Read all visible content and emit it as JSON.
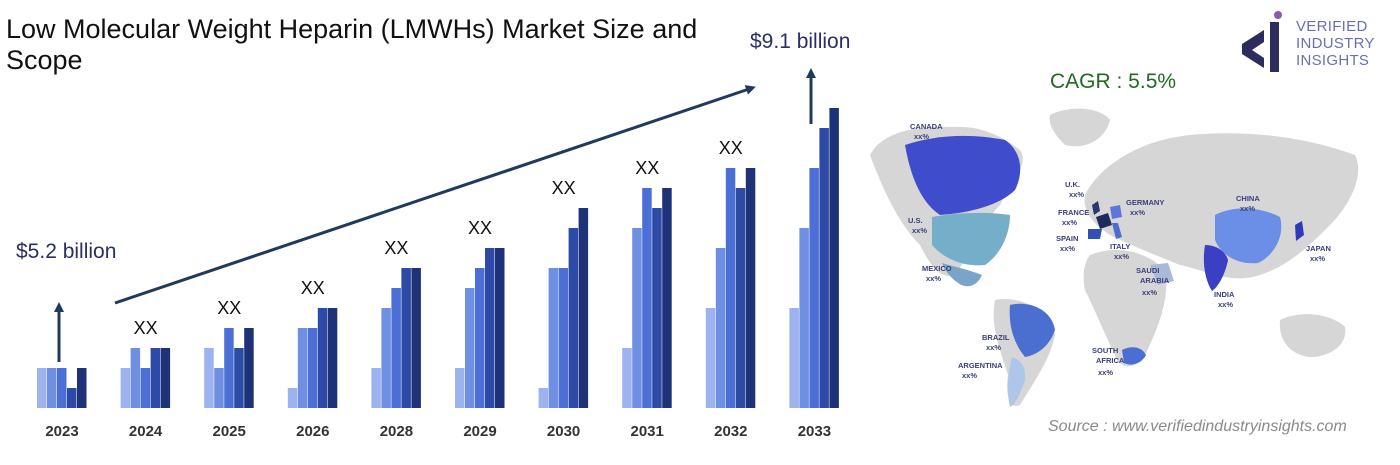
{
  "title": "Low Molecular Weight Heparin (LMWHs) Market Size and Scope",
  "start_value_label": "$5.2 billion",
  "end_value_label": "$9.1 billion",
  "cagr_label": "CAGR : 5.5%",
  "source": "Source : www.verifiedindustryinsights.com",
  "logo": {
    "line1": "VERIFIED",
    "line2": "INDUSTRY",
    "line3": "INSIGHTS"
  },
  "colors": {
    "bar_shades": [
      "#9db3ef",
      "#6f8fe3",
      "#4c6fd6",
      "#2d4aa6",
      "#1e3278"
    ],
    "arrow": "#1f3a5f",
    "title": "#111111",
    "cagr": "#1f6b1f"
  },
  "chart_data": {
    "type": "bar",
    "title": "Low Molecular Weight Heparin (LMWHs) Market Size and Scope",
    "categories": [
      "2023",
      "2024",
      "2025",
      "2026",
      "2028",
      "2029",
      "2030",
      "2031",
      "2032",
      "2033"
    ],
    "values": [
      5.2,
      null,
      null,
      null,
      null,
      null,
      null,
      null,
      null,
      9.1
    ],
    "value_labels": [
      "",
      "XX",
      "XX",
      "XX",
      "XX",
      "XX",
      "XX",
      "XX",
      "XX",
      ""
    ],
    "bar_levels": [
      [
        2,
        2,
        2,
        1,
        2
      ],
      [
        2,
        3,
        2,
        3,
        3
      ],
      [
        3,
        2,
        4,
        3,
        4
      ],
      [
        1,
        4,
        4,
        5,
        5
      ],
      [
        2,
        5,
        6,
        7,
        7
      ],
      [
        2,
        6,
        7,
        8,
        8
      ],
      [
        1,
        7,
        7,
        9,
        10
      ],
      [
        3,
        9,
        11,
        10,
        11
      ],
      [
        5,
        8,
        12,
        11,
        12
      ],
      [
        5,
        9,
        12,
        14,
        15
      ]
    ],
    "unit": "billion USD",
    "cagr": 5.5
  },
  "map": {
    "regions": [
      {
        "name": "CANADA",
        "value": "xx%"
      },
      {
        "name": "U.S.",
        "value": "xx%"
      },
      {
        "name": "MEXICO",
        "value": "xx%"
      },
      {
        "name": "BRAZIL",
        "value": "xx%"
      },
      {
        "name": "ARGENTINA",
        "value": "xx%"
      },
      {
        "name": "U.K.",
        "value": "xx%"
      },
      {
        "name": "FRANCE",
        "value": "xx%"
      },
      {
        "name": "SPAIN",
        "value": "xx%"
      },
      {
        "name": "GERMANY",
        "value": "xx%"
      },
      {
        "name": "ITALY",
        "value": "xx%"
      },
      {
        "name": "SAUDI",
        "value": "ARABIA"
      },
      {
        "name": "xx%",
        "value": ""
      },
      {
        "name": "SOUTH",
        "value": "AFRICA"
      },
      {
        "name": "xx%",
        "value": ""
      },
      {
        "name": "CHINA",
        "value": "xx%"
      },
      {
        "name": "INDIA",
        "value": "xx%"
      },
      {
        "name": "JAPAN",
        "value": "xx%"
      }
    ]
  }
}
